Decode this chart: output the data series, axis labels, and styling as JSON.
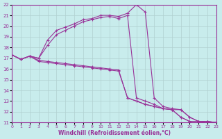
{
  "xlabel": "Windchill (Refroidissement éolien,°C)",
  "xlim": [
    0,
    23
  ],
  "ylim": [
    11,
    22
  ],
  "xticks": [
    0,
    1,
    2,
    3,
    4,
    5,
    6,
    7,
    8,
    9,
    10,
    11,
    12,
    13,
    14,
    15,
    16,
    17,
    18,
    19,
    20,
    21,
    22,
    23
  ],
  "yticks": [
    11,
    12,
    13,
    14,
    15,
    16,
    17,
    18,
    19,
    20,
    21,
    22
  ],
  "bg_color": "#c8ecec",
  "grid_color": "#b0d0d0",
  "line_color": "#993399",
  "lines": [
    [
      17.3,
      16.9,
      17.2,
      17.0,
      18.7,
      19.6,
      19.9,
      20.2,
      20.6,
      20.7,
      21.0,
      21.0,
      20.9,
      21.2,
      22.0,
      21.3,
      13.3,
      12.5,
      12.3,
      12.2,
      11.5,
      11.1,
      11.0,
      11.0
    ],
    [
      17.3,
      16.9,
      17.2,
      17.0,
      18.2,
      19.2,
      19.6,
      20.0,
      20.4,
      20.6,
      20.8,
      20.9,
      20.7,
      21.0,
      13.3,
      13.0,
      12.7,
      12.3,
      12.2,
      12.2,
      11.5,
      11.1,
      11.1,
      11.0
    ],
    [
      17.3,
      16.9,
      17.2,
      16.8,
      16.7,
      16.6,
      16.5,
      16.4,
      16.3,
      16.2,
      16.1,
      16.0,
      15.9,
      13.3,
      13.0,
      12.7,
      12.5,
      12.3,
      12.2,
      11.5,
      11.1,
      11.1,
      11.1,
      11.0
    ],
    [
      17.3,
      16.9,
      17.2,
      16.7,
      16.6,
      16.5,
      16.4,
      16.3,
      16.2,
      16.1,
      16.0,
      15.9,
      15.8,
      13.3,
      13.0,
      12.7,
      12.5,
      12.3,
      12.2,
      11.5,
      11.1,
      11.1,
      11.1,
      11.0
    ]
  ]
}
